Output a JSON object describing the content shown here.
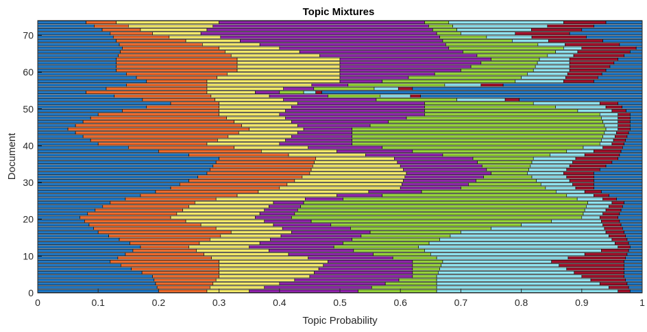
{
  "chart_data": {
    "type": "stacked-barh",
    "title": "Topic Mixtures",
    "xlabel": "Topic Probability",
    "ylabel": "Document",
    "xlim": [
      0,
      1
    ],
    "ylim": [
      0,
      74
    ],
    "xticks": [
      0,
      0.1,
      0.2,
      0.3,
      0.4,
      0.5,
      0.6,
      0.7,
      0.8,
      0.9,
      1
    ],
    "xtick_labels": [
      "0",
      "0.1",
      "0.2",
      "0.3",
      "0.4",
      "0.5",
      "0.6",
      "0.7",
      "0.8",
      "0.9",
      "1"
    ],
    "yticks": [
      0,
      10,
      20,
      30,
      40,
      50,
      60,
      70
    ],
    "ytick_labels": [
      "0",
      "10",
      "20",
      "30",
      "40",
      "50",
      "60",
      "70"
    ],
    "grid": false,
    "legend": "none",
    "num_documents": 74,
    "topic_colors": [
      "#1f77c4",
      "#ec6a2c",
      "#f2e86a",
      "#8e24aa",
      "#94d23a",
      "#8fe2ee",
      "#a0102a"
    ],
    "anchors": [
      {
        "doc": 0,
        "cum": [
          0.2,
          0.28,
          0.35,
          0.53,
          0.66,
          0.96,
          0.98
        ]
      },
      {
        "doc": 4,
        "cum": [
          0.19,
          0.3,
          0.45,
          0.62,
          0.66,
          0.9,
          0.97
        ]
      },
      {
        "doc": 8,
        "cum": [
          0.12,
          0.3,
          0.48,
          0.62,
          0.67,
          0.85,
          0.97
        ]
      },
      {
        "doc": 12,
        "cum": [
          0.17,
          0.25,
          0.35,
          0.49,
          0.63,
          0.96,
          0.98
        ]
      },
      {
        "doc": 16,
        "cum": [
          0.1,
          0.32,
          0.42,
          0.55,
          0.7,
          0.94,
          0.97
        ]
      },
      {
        "doc": 20,
        "cum": [
          0.07,
          0.22,
          0.36,
          0.42,
          0.9,
          0.93,
          0.96
        ]
      },
      {
        "doc": 24,
        "cum": [
          0.12,
          0.26,
          0.39,
          0.44,
          0.91,
          0.95,
          0.97
        ]
      },
      {
        "doc": 28,
        "cum": [
          0.22,
          0.4,
          0.6,
          0.7,
          0.84,
          0.89,
          0.92
        ]
      },
      {
        "doc": 32,
        "cum": [
          0.28,
          0.45,
          0.61,
          0.75,
          0.81,
          0.87,
          0.92
        ]
      },
      {
        "doc": 36,
        "cum": [
          0.3,
          0.46,
          0.59,
          0.72,
          0.82,
          0.89,
          0.96
        ]
      },
      {
        "doc": 40,
        "cum": [
          0.1,
          0.28,
          0.4,
          0.52,
          0.93,
          0.95,
          0.97
        ]
      },
      {
        "doc": 44,
        "cum": [
          0.05,
          0.35,
          0.44,
          0.52,
          0.94,
          0.96,
          0.98
        ]
      },
      {
        "doc": 48,
        "cum": [
          0.1,
          0.3,
          0.4,
          0.64,
          0.93,
          0.96,
          0.98
        ]
      },
      {
        "doc": 51,
        "cum": [
          0.22,
          0.3,
          0.43,
          0.64,
          0.82,
          0.93,
          0.96
        ]
      },
      {
        "doc": 54,
        "cum": [
          0.08,
          0.28,
          0.36,
          0.4,
          0.44,
          0.46,
          0.47
        ]
      },
      {
        "doc": 57,
        "cum": [
          0.18,
          0.28,
          0.5,
          0.57,
          0.79,
          0.87,
          0.92
        ]
      },
      {
        "doc": 60,
        "cum": [
          0.13,
          0.33,
          0.5,
          0.7,
          0.82,
          0.88,
          0.94
        ]
      },
      {
        "doc": 63,
        "cum": [
          0.13,
          0.33,
          0.5,
          0.75,
          0.83,
          0.88,
          0.96
        ]
      },
      {
        "doc": 66,
        "cum": [
          0.14,
          0.3,
          0.4,
          0.68,
          0.87,
          0.9,
          0.99
        ]
      },
      {
        "doc": 70,
        "cum": [
          0.12,
          0.19,
          0.27,
          0.66,
          0.7,
          0.79,
          0.88
        ]
      },
      {
        "doc": 73,
        "cum": [
          0.08,
          0.13,
          0.3,
          0.64,
          0.68,
          0.87,
          0.94
        ]
      }
    ]
  }
}
